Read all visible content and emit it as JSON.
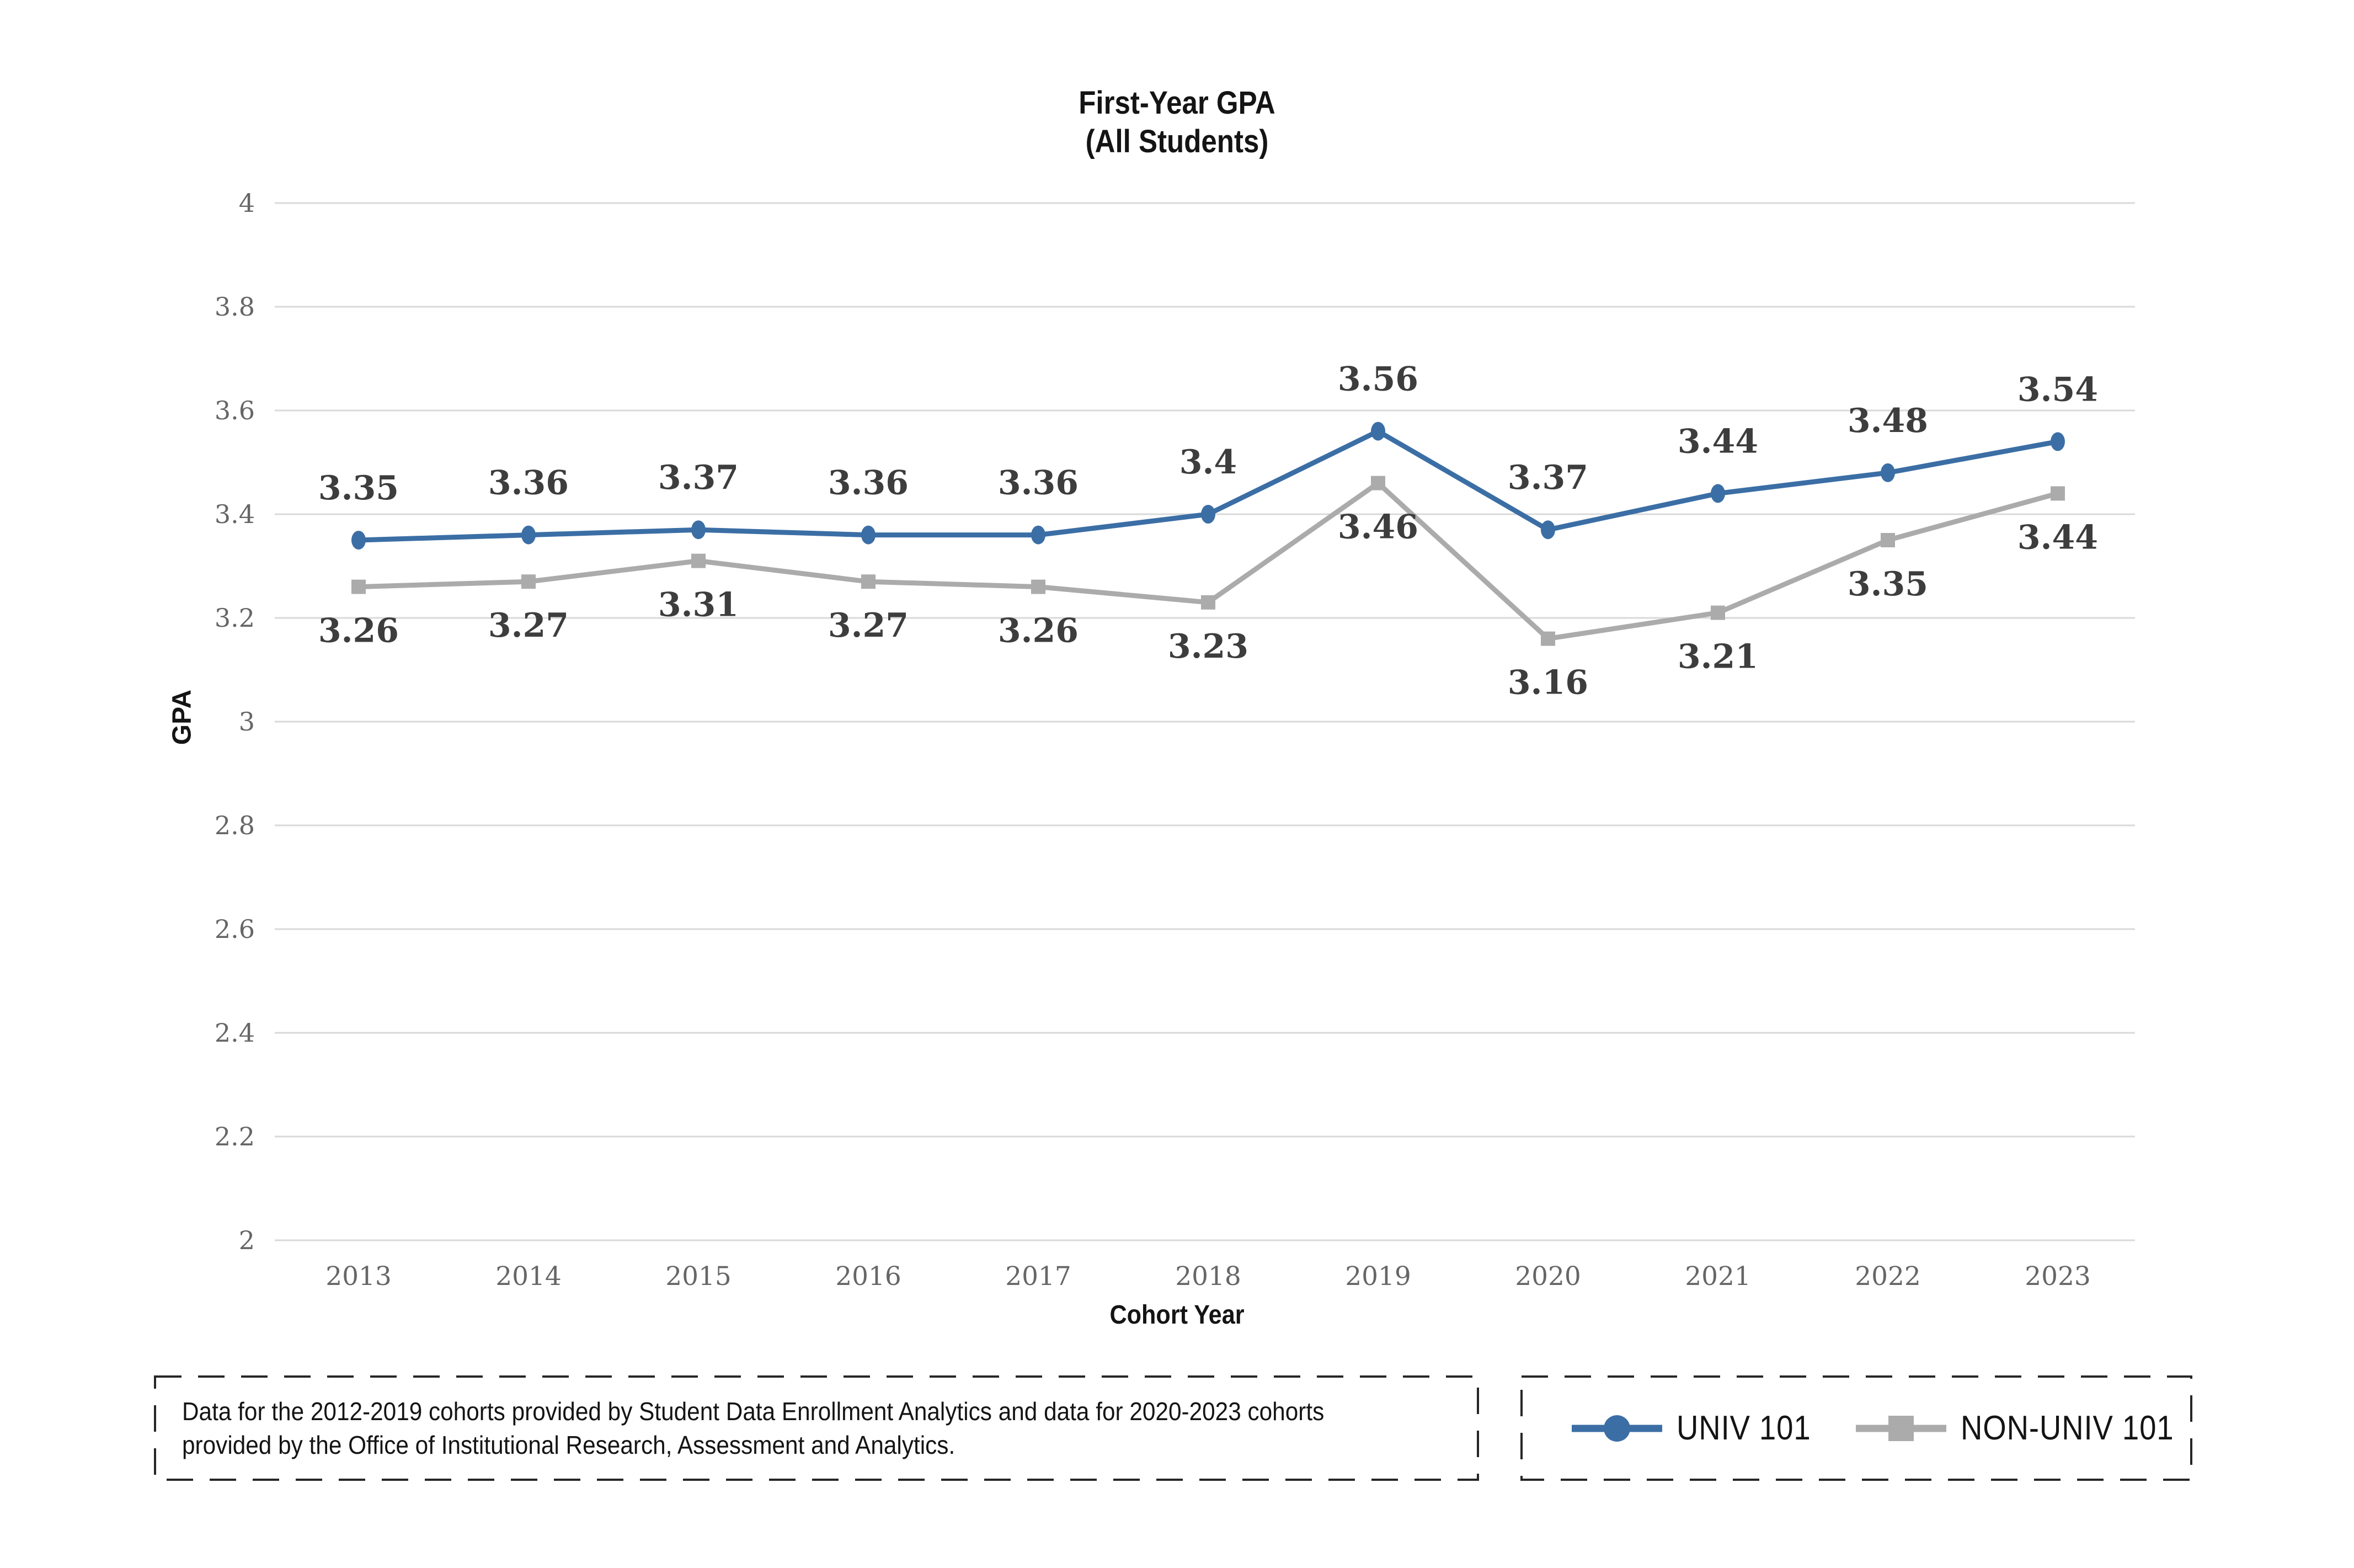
{
  "title": {
    "line1": "First-Year GPA",
    "line2": "(All Students)"
  },
  "chart_data": {
    "type": "line",
    "title": "First-Year GPA (All Students)",
    "xlabel": "Cohort Year",
    "ylabel": "GPA",
    "categories": [
      "2013",
      "2014",
      "2015",
      "2016",
      "2017",
      "2018",
      "2019",
      "2020",
      "2021",
      "2022",
      "2023"
    ],
    "series": [
      {
        "name": "UNIV 101",
        "color": "#3B6EA5",
        "marker": "circle",
        "label_position": "above",
        "values": [
          3.35,
          3.36,
          3.37,
          3.36,
          3.36,
          3.4,
          3.56,
          3.37,
          3.44,
          3.48,
          3.54
        ]
      },
      {
        "name": "NON-UNIV 101",
        "color": "#ABABAB",
        "marker": "square",
        "label_position": "below",
        "values": [
          3.26,
          3.27,
          3.31,
          3.27,
          3.26,
          3.23,
          3.46,
          3.16,
          3.21,
          3.35,
          3.44
        ]
      }
    ],
    "ylim": [
      2,
      4
    ],
    "ytick_step": 0.2,
    "y_ticks": [
      "4",
      "3.8",
      "3.6",
      "3.4",
      "3.2",
      "3",
      "2.8",
      "2.6",
      "2.4",
      "2.2",
      "2"
    ],
    "grid": true,
    "data_labels": true,
    "legend_position": "bottom-right"
  },
  "style": {
    "grid_color": "#D9D9D9",
    "tick_color": "#666666",
    "data_label_color": "#3D3D3D",
    "text_color": "#141414",
    "box_border_color": "#262626"
  },
  "footnote": {
    "text": "Data for the 2012-2019 cohorts provided by Student Data Enrollment Analytics and data for 2020-2023 cohorts provided by the Office of Institutional Research, Assessment and Analytics."
  }
}
